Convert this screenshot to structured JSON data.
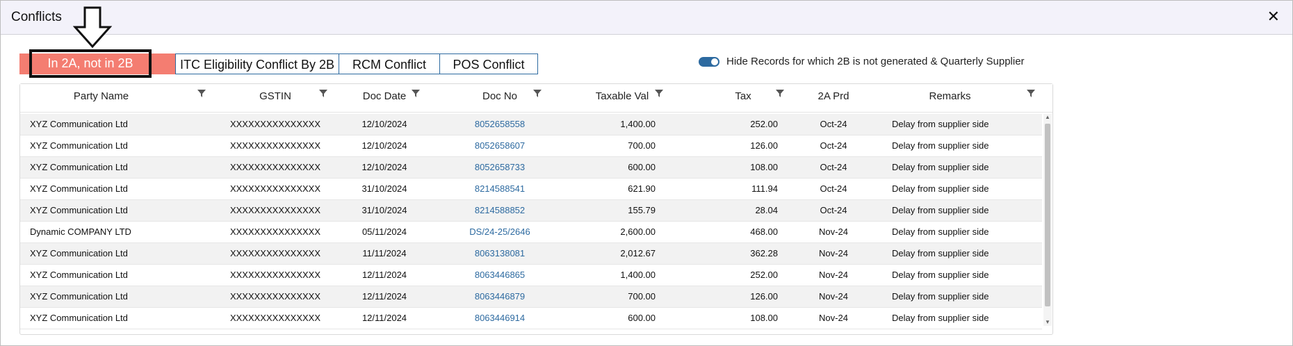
{
  "modal": {
    "title": "Conflicts",
    "close_symbol": "✕"
  },
  "tabs": [
    {
      "label": "In 2A, not in 2B",
      "active": true
    },
    {
      "label": "ITC Eligibility Conflict By 2B",
      "active": false
    },
    {
      "label": "RCM Conflict",
      "active": false
    },
    {
      "label": "POS Conflict",
      "active": false
    }
  ],
  "toggle": {
    "label": "Hide Records for which 2B is not generated & Quarterly Supplier",
    "on": true
  },
  "columns": [
    "Party Name",
    "GSTIN",
    "Doc Date",
    "Doc No",
    "Taxable Val",
    "Tax",
    "2A Prd",
    "Remarks"
  ],
  "rows": [
    {
      "party": "XYZ Communication Ltd",
      "gstin": "XXXXXXXXXXXXXXX",
      "date": "12/10/2024",
      "docno": "8052658558",
      "taxable": "1,400.00",
      "tax": "252.00",
      "prd": "Oct-24",
      "remarks": "Delay from supplier side"
    },
    {
      "party": "XYZ Communication Ltd",
      "gstin": "XXXXXXXXXXXXXXX",
      "date": "12/10/2024",
      "docno": "8052658607",
      "taxable": "700.00",
      "tax": "126.00",
      "prd": "Oct-24",
      "remarks": "Delay from supplier side"
    },
    {
      "party": "XYZ Communication Ltd",
      "gstin": "XXXXXXXXXXXXXXX",
      "date": "12/10/2024",
      "docno": "8052658733",
      "taxable": "600.00",
      "tax": "108.00",
      "prd": "Oct-24",
      "remarks": "Delay from supplier side"
    },
    {
      "party": "XYZ Communication Ltd",
      "gstin": "XXXXXXXXXXXXXXX",
      "date": "31/10/2024",
      "docno": "8214588541",
      "taxable": "621.90",
      "tax": "111.94",
      "prd": "Oct-24",
      "remarks": "Delay from supplier side"
    },
    {
      "party": "XYZ Communication Ltd",
      "gstin": "XXXXXXXXXXXXXXX",
      "date": "31/10/2024",
      "docno": "8214588852",
      "taxable": "155.79",
      "tax": "28.04",
      "prd": "Oct-24",
      "remarks": "Delay from supplier side"
    },
    {
      "party": "Dynamic COMPANY LTD",
      "gstin": "XXXXXXXXXXXXXXX",
      "date": "05/11/2024",
      "docno": "DS/24-25/2646",
      "taxable": "2,600.00",
      "tax": "468.00",
      "prd": "Nov-24",
      "remarks": "Delay from supplier side"
    },
    {
      "party": "XYZ Communication Ltd",
      "gstin": "XXXXXXXXXXXXXXX",
      "date": "11/11/2024",
      "docno": "8063138081",
      "taxable": "2,012.67",
      "tax": "362.28",
      "prd": "Nov-24",
      "remarks": "Delay from supplier side"
    },
    {
      "party": "XYZ Communication Ltd",
      "gstin": "XXXXXXXXXXXXXXX",
      "date": "12/11/2024",
      "docno": "8063446865",
      "taxable": "1,400.00",
      "tax": "252.00",
      "prd": "Nov-24",
      "remarks": "Delay from supplier side"
    },
    {
      "party": "XYZ Communication Ltd",
      "gstin": "XXXXXXXXXXXXXXX",
      "date": "12/11/2024",
      "docno": "8063446879",
      "taxable": "700.00",
      "tax": "126.00",
      "prd": "Nov-24",
      "remarks": "Delay from supplier side"
    },
    {
      "party": "XYZ Communication Ltd",
      "gstin": "XXXXXXXXXXXXXXX",
      "date": "12/11/2024",
      "docno": "8063446914",
      "taxable": "600.00",
      "tax": "108.00",
      "prd": "Nov-24",
      "remarks": "Delay from supplier side"
    }
  ],
  "scrollbar": {
    "up_symbol": "▲",
    "down_symbol": "▼"
  },
  "colors": {
    "active_tab": "#f47d71",
    "accent": "#2d6aa0"
  },
  "icons": {
    "arrow": "down-arrow-icon",
    "filter": "filter-icon",
    "close": "close-icon"
  }
}
